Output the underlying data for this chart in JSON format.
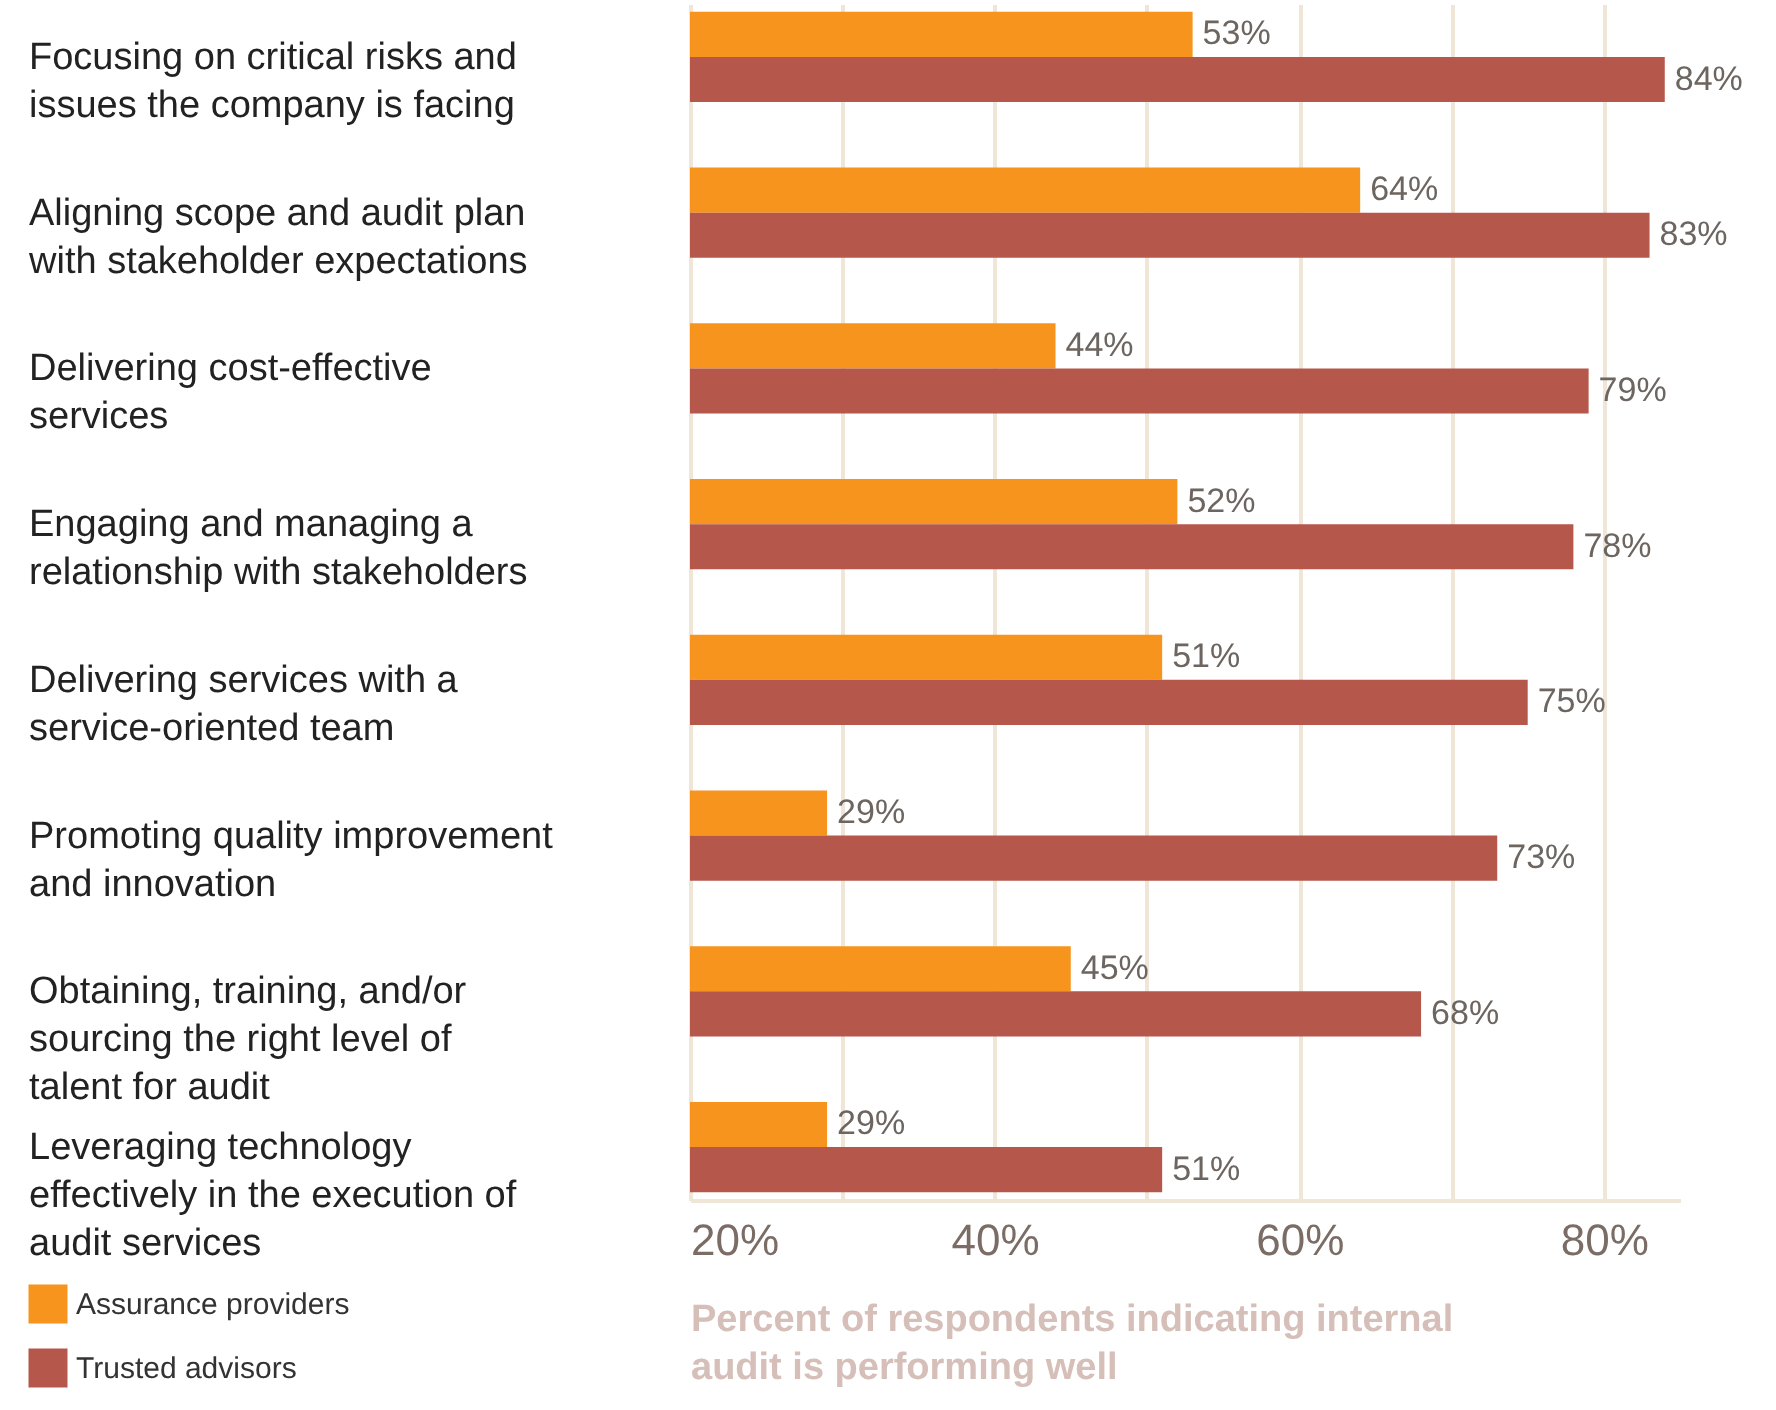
{
  "chart_data": {
    "type": "bar",
    "orientation": "horizontal",
    "categories": [
      "Focusing on critical risks and issues the company is facing",
      "Aligning scope and audit plan with stakeholder expectations",
      "Delivering cost-effective services",
      "Engaging and managing a relationship with stakeholders",
      "Delivering services with a service-oriented team",
      "Promoting quality improvement and innovation",
      "Obtaining, training, and/or sourcing the right level of talent for audit",
      "Leveraging technology effectively in the execution of audit services"
    ],
    "series": [
      {
        "name": "Assurance providers",
        "color": "#f7941d",
        "values": [
          53,
          64,
          44,
          52,
          51,
          29,
          45,
          29
        ],
        "value_labels": [
          "53%",
          "64%",
          "44%",
          "52%",
          "51%",
          "29%",
          "45%",
          "29%"
        ]
      },
      {
        "name": "Trusted advisors",
        "color": "#b5574b",
        "values": [
          84,
          83,
          79,
          78,
          75,
          73,
          68,
          51
        ],
        "value_labels": [
          "84%",
          "83%",
          "79%",
          "78%",
          "75%",
          "73%",
          "68%",
          "51%"
        ]
      }
    ],
    "xlabel": "Percent of respondents indicating internal audit is performing well",
    "xlim": [
      20,
      85
    ],
    "xticks": [
      {
        "value": 20,
        "label": "20%"
      },
      {
        "value": 30,
        "label": null
      },
      {
        "value": 40,
        "label": "40%"
      },
      {
        "value": 50,
        "label": null
      },
      {
        "value": 60,
        "label": "60%"
      },
      {
        "value": 70,
        "label": null
      },
      {
        "value": 80,
        "label": "80%"
      }
    ],
    "grid": "x",
    "legend": "bottom left"
  }
}
